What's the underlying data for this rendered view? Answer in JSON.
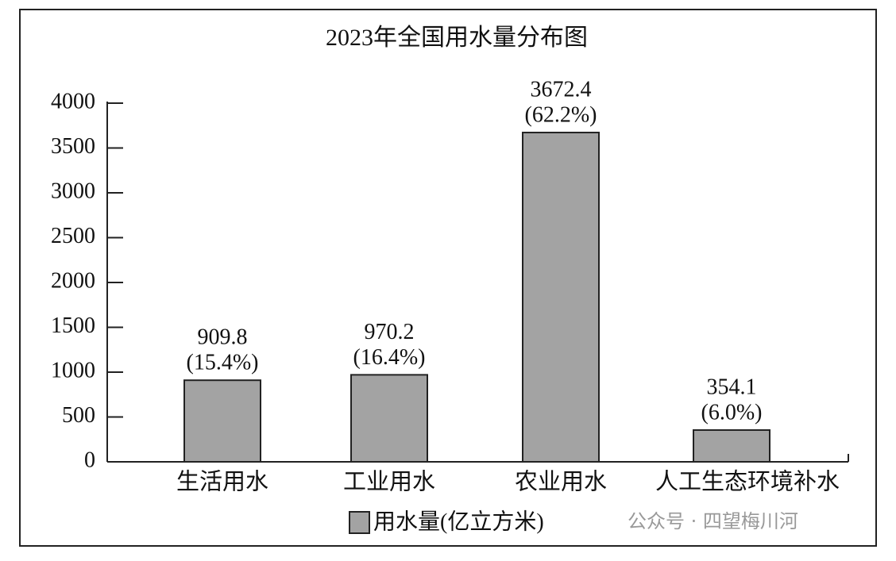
{
  "chart_data": {
    "type": "bar",
    "title": "2023年全国用水量分布图",
    "categories": [
      "生活用水",
      "工业用水",
      "农业用水",
      "人工生态环境补水"
    ],
    "series": [
      {
        "name": "用水量(亿立方米)",
        "color": "#a3a3a3",
        "values": [
          909.8,
          970.2,
          3672.4,
          354.1
        ]
      }
    ],
    "percent_labels": [
      "(15.4%)",
      "(16.4%)",
      "(62.2%)",
      "(6.0%)"
    ],
    "ylim": [
      0,
      4000
    ],
    "yticks": [
      0,
      500,
      1000,
      1500,
      2000,
      2500,
      3000,
      3500,
      4000
    ],
    "watermark": "公众号 · 四望梅川河"
  }
}
